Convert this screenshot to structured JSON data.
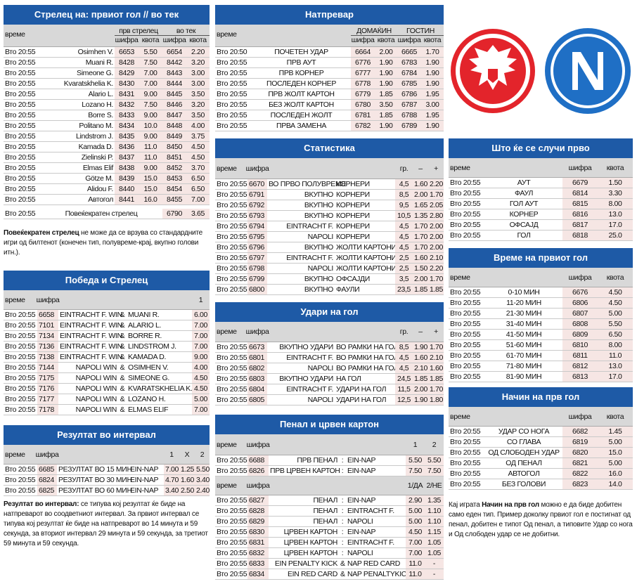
{
  "sections": [
    {
      "title": "Стрелец на: првиот гол // во тек",
      "groups": [
        "прв стрелец",
        "во тек"
      ],
      "header": [
        "време",
        "шифра",
        "квота",
        "шифра",
        "квота"
      ],
      "rows": [
        [
          "Вто 20:55",
          "Osimhen V.",
          "6653",
          "5.50",
          "6654",
          "2.20"
        ],
        [
          "Вто 20:55",
          "Muani R.",
          "8428",
          "7.50",
          "8442",
          "3.20"
        ],
        [
          "Вто 20:55",
          "Simeone G.",
          "8429",
          "7.00",
          "8443",
          "3.00"
        ],
        [
          "Вто 20:55",
          "Kvaratskhelia K.",
          "8430",
          "7.00",
          "8444",
          "3.00"
        ],
        [
          "Вто 20:55",
          "Alario L.",
          "8431",
          "9.00",
          "8445",
          "3.50"
        ],
        [
          "Вто 20:55",
          "Lozano H.",
          "8432",
          "7.50",
          "8446",
          "3.20"
        ],
        [
          "Вто 20:55",
          "Borre S.",
          "8433",
          "9.00",
          "8447",
          "3.50"
        ],
        [
          "Вто 20:55",
          "Politano M.",
          "8434",
          "10.0",
          "8448",
          "4.00"
        ],
        [
          "Вто 20:55",
          "Lindstrom J.",
          "8435",
          "9.00",
          "8449",
          "3.75"
        ],
        [
          "Вто 20:55",
          "Kamada D.",
          "8436",
          "11.0",
          "8450",
          "4.50"
        ],
        [
          "Вто 20:55",
          "Zielinski P.",
          "8437",
          "11.0",
          "8451",
          "4.50"
        ],
        [
          "Вто 20:55",
          "Elmas Elif",
          "8438",
          "9.00",
          "8452",
          "3.70"
        ],
        [
          "Вто 20:55",
          "Götze M.",
          "8439",
          "15.0",
          "8453",
          "6.50"
        ],
        [
          "Вто 20:55",
          "Alidou F.",
          "8440",
          "15.0",
          "8454",
          "6.50"
        ],
        [
          "Вто 20:55",
          "Автогол",
          "8441",
          "16.0",
          "8455",
          "7.00"
        ]
      ],
      "total_row": [
        "Вто 20:55",
        "Повеќекратен стрелец",
        "6790",
        "3.65"
      ],
      "note": [
        {
          "b": "Повеќекратен стрелец"
        },
        {
          "t": " не може да се врзува со стандардните игри од билтенот (конечен тип, полувреме-крај, вкупно голови итн.)."
        }
      ]
    },
    {
      "title": "Натпревар",
      "groups": [
        "ДОМАЌИН",
        "ГОСТИН"
      ],
      "header": [
        "време",
        "шифра",
        "квота",
        "шифра",
        "квота"
      ],
      "rows": [
        [
          "Вто 20:50",
          "ПОЧЕТЕН УДАР",
          "6664",
          "2.00",
          "6665",
          "1.70"
        ],
        [
          "Вто 20:55",
          "ПРВ АУТ",
          "6776",
          "1.90",
          "6783",
          "1.90"
        ],
        [
          "Вто 20:55",
          "ПРВ КОРНЕР",
          "6777",
          "1.90",
          "6784",
          "1.90"
        ],
        [
          "Вто 20:55",
          "ПОСЛЕДЕН КОРНЕР",
          "6778",
          "1.90",
          "6785",
          "1.90"
        ],
        [
          "Вто 20:55",
          "ПРВ ЖОЛТ КАРТОН",
          "6779",
          "1.85",
          "6786",
          "1.95"
        ],
        [
          "Вто 20:55",
          "БЕЗ ЖОЛТ КАРТОН",
          "6780",
          "3.50",
          "6787",
          "3.00"
        ],
        [
          "Вто 20:55",
          "ПОСЛЕДЕН ЖОЛТ",
          "6781",
          "1.85",
          "6788",
          "1.95"
        ],
        [
          "Вто 20:55",
          "ПРВА ЗАМЕНА",
          "6782",
          "1.90",
          "6789",
          "1.90"
        ]
      ]
    },
    {
      "title": "Статистика",
      "header": [
        "време",
        "шифра",
        "гр.",
        "–",
        "+"
      ],
      "rows": [
        [
          "Вто 20:55",
          "6670",
          "ВО ПРВО ПОЛУВРЕМЕ",
          "КОРНЕРИ",
          "4,5",
          "1.60",
          "2.20"
        ],
        [
          "Вто 20:55",
          "6791",
          "ВКУПНО",
          "КОРНЕРИ",
          "8,5",
          "2.00",
          "1.70"
        ],
        [
          "Вто 20:55",
          "6792",
          "ВКУПНО",
          "КОРНЕРИ",
          "9,5",
          "1.65",
          "2.05"
        ],
        [
          "Вто 20:55",
          "6793",
          "ВКУПНО",
          "КОРНЕРИ",
          "10,5",
          "1.35",
          "2.80"
        ],
        [
          "Вто 20:55",
          "6794",
          "EINTRACHT F.",
          "КОРНЕРИ",
          "4,5",
          "1.70",
          "2.00"
        ],
        [
          "Вто 20:55",
          "6795",
          "NAPOLI",
          "КОРНЕРИ",
          "4,5",
          "1.70",
          "2.00"
        ],
        [
          "Вто 20:55",
          "6796",
          "ВКУПНО",
          "ЖОЛТИ КАРТОНИ",
          "4,5",
          "1.70",
          "2.00"
        ],
        [
          "Вто 20:55",
          "6797",
          "EINTRACHT F.",
          "ЖОЛТИ КАРТОНИ",
          "2,5",
          "1.60",
          "2.10"
        ],
        [
          "Вто 20:55",
          "6798",
          "NAPOLI",
          "ЖОЛТИ КАРТОНИ",
          "2,5",
          "1.50",
          "2.20"
        ],
        [
          "Вто 20:55",
          "6799",
          "ВКУПНО",
          "ОФСАЈДИ",
          "3,5",
          "2.00",
          "1.70"
        ],
        [
          "Вто 20:55",
          "6800",
          "ВКУПНО",
          "ФАУЛИ",
          "23,5",
          "1.85",
          "1.85"
        ]
      ]
    },
    {
      "title": "Удари на гол",
      "header": [
        "време",
        "шифра",
        "гр.",
        "–",
        "+"
      ],
      "rows": [
        [
          "Вто 20:55",
          "6673",
          "ВКУПНО УДАРИ",
          "ВО РАМКИ НА ГОЛ",
          "8,5",
          "1.90",
          "1.70"
        ],
        [
          "Вто 20:55",
          "6801",
          "EINTRACHT F.",
          "ВО РАМКИ НА ГОЛ",
          "4,5",
          "1.60",
          "2.10"
        ],
        [
          "Вто 20:55",
          "6802",
          "NAPOLI",
          "ВО РАМКИ НА ГОЛ",
          "4,5",
          "2.10",
          "1.60"
        ],
        [
          "Вто 20:55",
          "6803",
          "ВКУПНО УДАРИ",
          "НА ГОЛ",
          "24,5",
          "1.85",
          "1.85"
        ],
        [
          "Вто 20:55",
          "6804",
          "EINTRACHT F.",
          "УДАРИ НА ГОЛ",
          "11,5",
          "2.00",
          "1.70"
        ],
        [
          "Вто 20:55",
          "6805",
          "NAPOLI",
          "УДАРИ НА ГОЛ",
          "12,5",
          "1.90",
          "1.80"
        ]
      ]
    },
    {
      "title": "Пенал и црвен картон",
      "header": [
        "време",
        "шифра",
        "1",
        "2"
      ],
      "rows": [
        [
          "Вто 20:55",
          "6688",
          "ПРВ ПЕНАЛ",
          ":",
          "EIN-NAP",
          "5.50",
          "5.50"
        ],
        [
          "Вто 20:55",
          "6826",
          "ПРВ ЦРВЕН КАРТОН",
          ":",
          "EIN-NAP",
          "7.50",
          "7.50"
        ]
      ],
      "header2": [
        "време",
        "шифра",
        "1/ДА",
        "2/НЕ"
      ],
      "rows2": [
        [
          "Вто 20:55",
          "6827",
          "ПЕНАЛ",
          ":",
          "EIN-NAP",
          "2.90",
          "1.35"
        ],
        [
          "Вто 20:55",
          "6828",
          "ПЕНАЛ",
          ":",
          "EINTRACHT F.",
          "5.00",
          "1.10"
        ],
        [
          "Вто 20:55",
          "6829",
          "ПЕНАЛ",
          ":",
          "NAPOLI",
          "5.00",
          "1.10"
        ],
        [
          "Вто 20:55",
          "6830",
          "ЦРВЕН КАРТОН",
          ":",
          "EIN-NAP",
          "4.50",
          "1.15"
        ],
        [
          "Вто 20:55",
          "6831",
          "ЦРВЕН КАРТОН",
          ":",
          "EINTRACHT F.",
          "7.00",
          "1.05"
        ],
        [
          "Вто 20:55",
          "6832",
          "ЦРВЕН КАРТОН",
          ":",
          "NAPOLI",
          "7.00",
          "1.05"
        ],
        [
          "Вто 20:55",
          "6833",
          "EIN PENALTY KICK",
          "&",
          "NAP RED CARD",
          "11.0",
          "-"
        ],
        [
          "Вто 20:55",
          "6834",
          "EIN RED CARD",
          "&",
          "NAP PENALTYKICK",
          "11.0",
          "-"
        ]
      ]
    },
    {
      "title": "Што ќе се случи прво",
      "header": [
        "време",
        "шифра",
        "квота"
      ],
      "rows": [
        [
          "Вто 20:55",
          "АУТ",
          "6679",
          "1.50"
        ],
        [
          "Вто 20:55",
          "ФАУЛ",
          "6814",
          "3.30"
        ],
        [
          "Вто 20:55",
          "ГОЛ АУТ",
          "6815",
          "8.00"
        ],
        [
          "Вто 20:55",
          "КОРНЕР",
          "6816",
          "13.0"
        ],
        [
          "Вто 20:55",
          "ОФСАЈД",
          "6817",
          "17.0"
        ],
        [
          "Вто 20:55",
          "ГОЛ",
          "6818",
          "25.0"
        ]
      ]
    },
    {
      "title": "Време на првиот гол",
      "header": [
        "време",
        "шифра",
        "квота"
      ],
      "rows": [
        [
          "Вто 20:55",
          "0-10 МИН",
          "6676",
          "4.50"
        ],
        [
          "Вто 20:55",
          "11-20 МИН",
          "6806",
          "4.50"
        ],
        [
          "Вто 20:55",
          "21-30 МИН",
          "6807",
          "5.00"
        ],
        [
          "Вто 20:55",
          "31-40 МИН",
          "6808",
          "5.50"
        ],
        [
          "Вто 20:55",
          "41-50 МИН",
          "6809",
          "6.50"
        ],
        [
          "Вто 20:55",
          "51-60 МИН",
          "6810",
          "8.00"
        ],
        [
          "Вто 20:55",
          "61-70 МИН",
          "6811",
          "11.0"
        ],
        [
          "Вто 20:55",
          "71-80 МИН",
          "6812",
          "13.0"
        ],
        [
          "Вто 20:55",
          "81-90 МИН",
          "6813",
          "17.0"
        ]
      ]
    },
    {
      "title": "Начин на прв гол",
      "header": [
        "време",
        "шифра",
        "квота"
      ],
      "rows": [
        [
          "Вто 20:55",
          "УДАР СО НОГА",
          "6682",
          "1.45"
        ],
        [
          "Вто 20:55",
          "СО ГЛАВА",
          "6819",
          "5.00"
        ],
        [
          "Вто 20:55",
          "ОД СЛОБОДЕН УДАР",
          "6820",
          "15.0"
        ],
        [
          "Вто 20:55",
          "ОД ПЕНАЛ",
          "6821",
          "5.00"
        ],
        [
          "Вто 20:55",
          "АВТОГОЛ",
          "6822",
          "16.0"
        ],
        [
          "Вто 20:55",
          "БЕЗ ГОЛОВИ",
          "6823",
          "14.0"
        ]
      ],
      "note": [
        {
          "t": "Кај играта "
        },
        {
          "b": "Начин на прв гол"
        },
        {
          "t": " можно е да биде добитен само еден тип. Пример доколку првиот гол е постигнат од пенал, добитен е типот Од пенал, а типовите Удар со нога и Од слободен удар се не добитни."
        }
      ]
    },
    {
      "title": "Победа и Стрелец",
      "header": [
        "време",
        "шифра",
        "1"
      ],
      "rows": [
        [
          "Вто 20:55",
          "6658",
          "EINTRACHT F. WIN",
          "&",
          "MUANI R.",
          "6.00"
        ],
        [
          "Вто 20:55",
          "7101",
          "EINTRACHT F. WIN",
          "&",
          "ALARIO L.",
          "7.00"
        ],
        [
          "Вто 20:55",
          "7134",
          "EINTRACHT F. WIN",
          "&",
          "BORRE R.",
          "7.00"
        ],
        [
          "Вто 20:55",
          "7136",
          "EINTRACHT F. WIN",
          "&",
          "LINDSTROM J.",
          "7.00"
        ],
        [
          "Вто 20:55",
          "7138",
          "EINTRACHT F. WIN",
          "&",
          "KAMADA D.",
          "9.00"
        ],
        [
          "Вто 20:55",
          "7144",
          "NAPOLI WIN",
          "&",
          "OSIMHEN V.",
          "4.00"
        ],
        [
          "Вто 20:55",
          "7175",
          "NAPOLI WIN",
          "&",
          "SIMEONE G.",
          "4.50"
        ],
        [
          "Вто 20:55",
          "7176",
          "NAPOLI WIN",
          "&",
          "KVARATSKHELIA K.",
          "4.50"
        ],
        [
          "Вто 20:55",
          "7177",
          "NAPOLI WIN",
          "&",
          "LOZANO H.",
          "5.00"
        ],
        [
          "Вто 20:55",
          "7178",
          "NAPOLI WIN",
          "&",
          "ELMAS ELIF",
          "7.00"
        ]
      ]
    },
    {
      "title": "Резултат во интервал",
      "header": [
        "време",
        "шифра",
        "1",
        "X",
        "2"
      ],
      "rows": [
        [
          "Вто 20:55",
          "6685",
          "РЕЗУЛТАТ ВО 15 МИН",
          "EIN-NAP",
          "7.00",
          "1.25",
          "5.50"
        ],
        [
          "Вто 20:55",
          "6824",
          "РЕЗУЛТАТ ВО 30 МИН",
          "EIN-NAP",
          "4.70",
          "1.60",
          "3.40"
        ],
        [
          "Вто 20:55",
          "6825",
          "РЕЗУЛТАТ ВО 60 МИН",
          "EIN-NAP",
          "3.40",
          "2.50",
          "2.40"
        ]
      ],
      "note": [
        {
          "b": "Резултат во интервал:"
        },
        {
          "t": " се типува кој резултат ќе биде на натпреварот во соодветниот интервал. За првиот интервал се типува кој резултат ќе биде на натпреварот во 14 минута и 59 секунда, за вториот интервал 29 минута и 59 секунда, за третиот 59 минута и 59 секунда."
        }
      ]
    }
  ]
}
